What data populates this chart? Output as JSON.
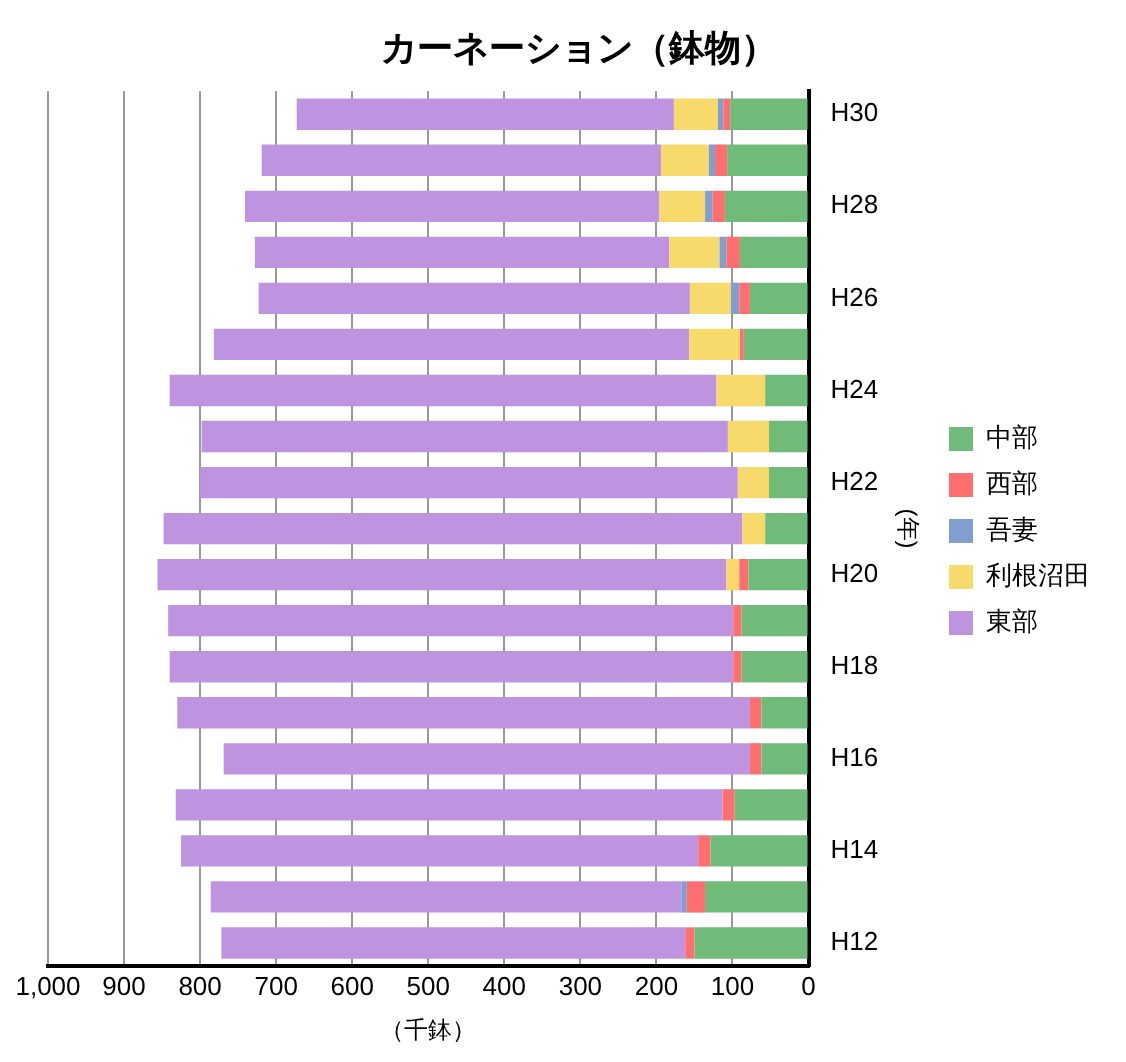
{
  "chart_data": {
    "type": "bar",
    "orientation": "horizontal",
    "stacked": true,
    "title": "カーネーション（鉢物）",
    "xlabel": "（千鉢）",
    "ylabel": "(年)",
    "categories": [
      "H30",
      null,
      "H28",
      null,
      "H26",
      null,
      "H24",
      null,
      "H22",
      null,
      "H20",
      null,
      "H18",
      null,
      "H16",
      null,
      "H14",
      null,
      "H12"
    ],
    "series": [
      {
        "name": "中部",
        "color": "#70bb7a",
        "values": [
          103,
          107,
          110,
          90,
          77,
          85,
          57,
          52,
          52,
          57,
          79,
          88,
          88,
          62,
          62,
          97,
          129,
          136,
          150
        ]
      },
      {
        "name": "西部",
        "color": "#ff6f6f",
        "values": [
          9,
          16,
          16,
          18,
          14,
          5,
          0,
          0,
          0,
          0,
          12,
          11,
          11,
          15,
          15,
          16,
          16,
          24,
          12
        ]
      },
      {
        "name": "吾妻",
        "color": "#7f9fd0",
        "values": [
          7,
          8,
          10,
          9,
          11,
          0,
          0,
          0,
          0,
          0,
          0,
          0,
          0,
          0,
          0,
          0,
          0,
          7,
          0
        ]
      },
      {
        "name": "利根沼田",
        "color": "#f8da6c",
        "values": [
          58,
          63,
          60,
          66,
          54,
          67,
          64,
          54,
          41,
          30,
          17,
          0,
          0,
          0,
          0,
          0,
          0,
          0,
          0
        ]
      },
      {
        "name": "東部",
        "color": "#be93e0",
        "values": [
          496,
          525,
          545,
          545,
          567,
          625,
          719,
          692,
          707,
          761,
          748,
          743,
          741,
          753,
          692,
          719,
          680,
          619,
          610
        ]
      }
    ],
    "xlim": [
      1000,
      0
    ],
    "xticks": [
      0,
      100,
      200,
      300,
      400,
      500,
      600,
      700,
      800,
      900,
      {
        "value": 1000,
        "label": "1,000"
      }
    ],
    "grid": "x",
    "legend": "right"
  }
}
